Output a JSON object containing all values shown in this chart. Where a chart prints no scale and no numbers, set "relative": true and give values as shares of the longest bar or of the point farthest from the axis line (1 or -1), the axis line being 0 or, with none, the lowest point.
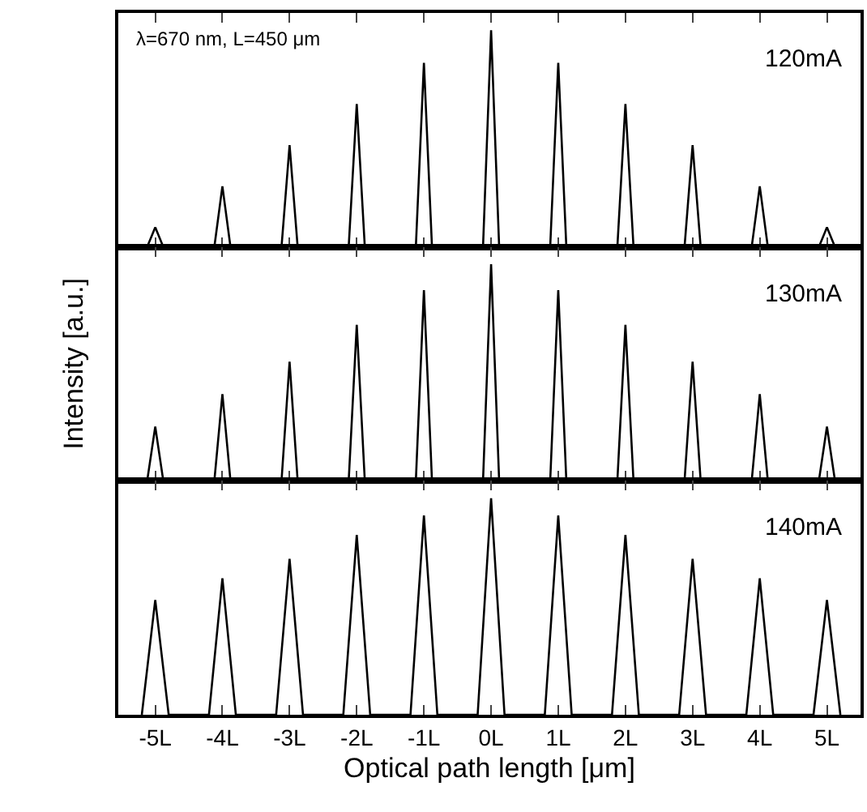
{
  "chart_data": [
    {
      "type": "line",
      "relative": true,
      "tick_labels": false,
      "line_style": "solid",
      "x": [
        -5.12,
        -5,
        -4.88,
        -4.12,
        -4,
        -3.88,
        -3.12,
        -3,
        -2.88,
        -2.12,
        -2,
        -1.88,
        -1.12,
        -1,
        -0.88,
        -0.12,
        0,
        0.12,
        0.88,
        1,
        1.12,
        1.88,
        2,
        2.12,
        2.88,
        3,
        3.12,
        3.88,
        4,
        4.12,
        4.88,
        5,
        5.12
      ],
      "xlim": [
        -5.55,
        5.5
      ],
      "xticks": [
        {
          "value": -5,
          "label": null
        },
        {
          "value": -4,
          "label": null
        },
        {
          "value": -3,
          "label": null
        },
        {
          "value": -2,
          "label": null
        },
        {
          "value": -1,
          "label": null
        },
        {
          "value": 0,
          "label": null
        },
        {
          "value": 1,
          "label": null
        },
        {
          "value": 2,
          "label": null
        },
        {
          "value": 3,
          "label": null
        },
        {
          "value": 4,
          "label": null
        },
        {
          "value": 5,
          "label": null
        }
      ],
      "series": [
        {
          "color": "#000000",
          "values": [
            0,
            0.09,
            0,
            0,
            0.28,
            0,
            0,
            0.47,
            0,
            0,
            0.66,
            0,
            0,
            0.85,
            0,
            0,
            1,
            0,
            0,
            0.85,
            0,
            0,
            0.66,
            0,
            0,
            0.47,
            0,
            0,
            0.28,
            0,
            0,
            0.09,
            0
          ]
        }
      ],
      "annotations": [
        "λ=670 nm, L=450 μm",
        "120mA"
      ]
    },
    {
      "type": "line",
      "relative": true,
      "tick_labels": false,
      "line_style": "solid",
      "ylabel": "Intensity [a.u.]",
      "x": [
        -5.12,
        -5,
        -4.88,
        -4.12,
        -4,
        -3.88,
        -3.12,
        -3,
        -2.88,
        -2.12,
        -2,
        -1.88,
        -1.12,
        -1,
        -0.88,
        -0.12,
        0,
        0.12,
        0.88,
        1,
        1.12,
        1.88,
        2,
        2.12,
        2.88,
        3,
        3.12,
        3.88,
        4,
        4.12,
        4.88,
        5,
        5.12
      ],
      "xlim": [
        -5.55,
        5.5
      ],
      "xticks": [
        {
          "value": -5,
          "label": null
        },
        {
          "value": -4,
          "label": null
        },
        {
          "value": -3,
          "label": null
        },
        {
          "value": -2,
          "label": null
        },
        {
          "value": -1,
          "label": null
        },
        {
          "value": 0,
          "label": null
        },
        {
          "value": 1,
          "label": null
        },
        {
          "value": 2,
          "label": null
        },
        {
          "value": 3,
          "label": null
        },
        {
          "value": 4,
          "label": null
        },
        {
          "value": 5,
          "label": null
        }
      ],
      "series": [
        {
          "color": "#000000",
          "values": [
            0,
            0.25,
            0,
            0,
            0.4,
            0,
            0,
            0.55,
            0,
            0,
            0.72,
            0,
            0,
            0.88,
            0,
            0,
            1,
            0,
            0,
            0.88,
            0,
            0,
            0.72,
            0,
            0,
            0.55,
            0,
            0,
            0.4,
            0,
            0,
            0.25,
            0
          ]
        }
      ],
      "annotations": [
        "130mA"
      ]
    },
    {
      "type": "line",
      "relative": true,
      "tick_labels": "x",
      "line_style": "solid",
      "xlabel": "Optical path length [μm]",
      "x": [
        -5.2,
        -5,
        -4.8,
        -4.2,
        -4,
        -3.8,
        -3.2,
        -3,
        -2.8,
        -2.2,
        -2,
        -1.8,
        -1.2,
        -1,
        -0.8,
        -0.2,
        0,
        0.2,
        0.8,
        1,
        1.2,
        1.8,
        2,
        2.2,
        2.8,
        3,
        3.2,
        3.8,
        4,
        4.2,
        4.8,
        5,
        5.2
      ],
      "xlim": [
        -5.55,
        5.5
      ],
      "xticks": [
        {
          "value": -5,
          "label": "-5L"
        },
        {
          "value": -4,
          "label": "-4L"
        },
        {
          "value": -3,
          "label": "-3L"
        },
        {
          "value": -2,
          "label": "-2L"
        },
        {
          "value": -1,
          "label": "-1L"
        },
        {
          "value": 0,
          "label": "0L"
        },
        {
          "value": 1,
          "label": "1L"
        },
        {
          "value": 2,
          "label": "2L"
        },
        {
          "value": 3,
          "label": "3L"
        },
        {
          "value": 4,
          "label": "4L"
        },
        {
          "value": 5,
          "label": "5L"
        }
      ],
      "series": [
        {
          "color": "#000000",
          "values": [
            0,
            0.53,
            0,
            0,
            0.63,
            0,
            0,
            0.72,
            0,
            0,
            0.83,
            0,
            0,
            0.92,
            0,
            0,
            1,
            0,
            0,
            0.92,
            0,
            0,
            0.83,
            0,
            0,
            0.72,
            0,
            0,
            0.63,
            0,
            0,
            0.53,
            0
          ]
        }
      ],
      "annotations": [
        "140mA"
      ]
    }
  ]
}
